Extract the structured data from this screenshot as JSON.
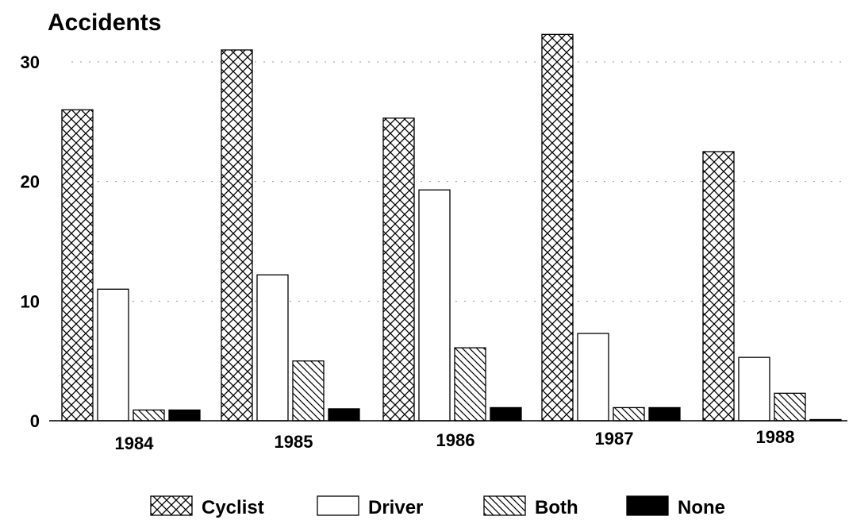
{
  "chart_data": {
    "type": "bar",
    "title": "",
    "ylabel": "Accidents",
    "xlabel": "",
    "categories": [
      "1984",
      "1985",
      "1986",
      "1987",
      "1988"
    ],
    "series": [
      {
        "name": "Cyclist",
        "values": [
          26,
          31,
          25.3,
          32.3,
          22.5
        ],
        "pattern": "crosshatch"
      },
      {
        "name": "Driver",
        "values": [
          11,
          12.2,
          19.3,
          7.3,
          5.3
        ],
        "pattern": "white"
      },
      {
        "name": "Both",
        "values": [
          0.9,
          5,
          6.1,
          1.1,
          2.3
        ],
        "pattern": "diagonal"
      },
      {
        "name": "None",
        "values": [
          0.9,
          1,
          1.1,
          1.1,
          0.1
        ],
        "pattern": "solid"
      }
    ],
    "ylim": [
      0,
      30
    ],
    "yticks": [
      0,
      10,
      20,
      30
    ],
    "grid": true,
    "legend_position": "bottom",
    "colors": {
      "ink": "#000000",
      "background": "#ffffff"
    }
  }
}
